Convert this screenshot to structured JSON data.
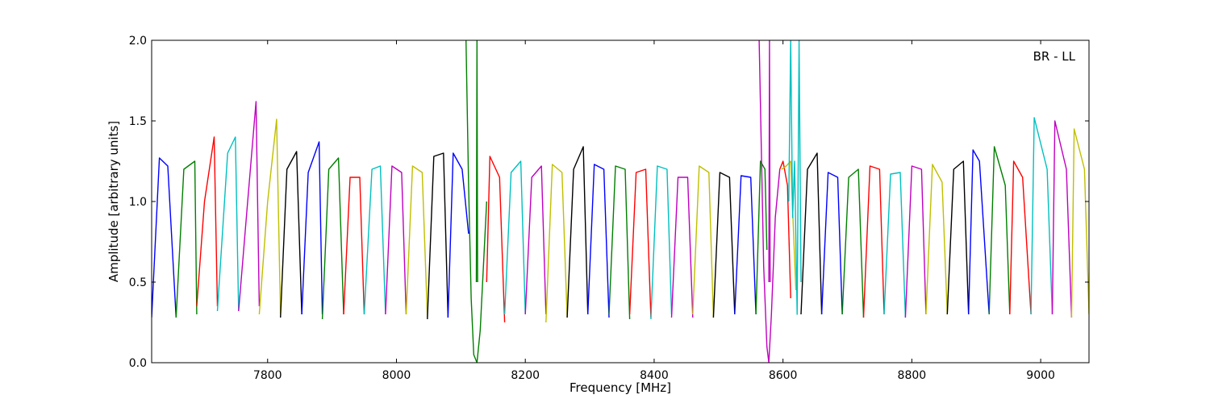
{
  "chart_data": {
    "type": "line",
    "annotation": "BR - LL",
    "xlabel": "Frequency [MHz]",
    "ylabel": "Amplitude [arbitrary units]",
    "xlim": [
      7620,
      9075
    ],
    "ylim": [
      0,
      2.0
    ],
    "xticks": [
      7800,
      8000,
      8200,
      8400,
      8600,
      8800,
      9000
    ],
    "yticks": [
      0.0,
      0.5,
      1.0,
      1.5,
      2.0
    ],
    "ytick_labels": [
      "0.0",
      "0.5",
      "1.0",
      "1.5",
      "2.0"
    ],
    "grid": false,
    "colors": {
      "blue": "#0000ff",
      "green": "#007f00",
      "red": "#ff0000",
      "cyan": "#00bfbf",
      "magenta": "#bf00bf",
      "olive": "#bfbf00",
      "black": "#000000"
    },
    "series": [
      {
        "color": "blue",
        "x": [
          7620,
          7632,
          7645,
          7658
        ],
        "y": [
          0.28,
          1.27,
          1.22,
          0.28
        ]
      },
      {
        "color": "green",
        "x": [
          7658,
          7670,
          7687,
          7690
        ],
        "y": [
          0.28,
          1.2,
          1.25,
          0.3
        ]
      },
      {
        "color": "red",
        "x": [
          7690,
          7702,
          7717,
          7722
        ],
        "y": [
          0.35,
          1.0,
          1.4,
          0.35
        ]
      },
      {
        "color": "cyan",
        "x": [
          7722,
          7738,
          7750,
          7755
        ],
        "y": [
          0.32,
          1.3,
          1.4,
          0.32
        ]
      },
      {
        "color": "magenta",
        "x": [
          7755,
          7768,
          7782,
          7787
        ],
        "y": [
          0.32,
          0.95,
          1.62,
          0.35
        ]
      },
      {
        "color": "olive",
        "x": [
          7787,
          7800,
          7814,
          7820
        ],
        "y": [
          0.3,
          1.0,
          1.51,
          0.3
        ]
      },
      {
        "color": "black",
        "x": [
          7820,
          7830,
          7845,
          7853
        ],
        "y": [
          0.28,
          1.2,
          1.31,
          0.3
        ]
      },
      {
        "color": "blue",
        "x": [
          7853,
          7863,
          7880,
          7885
        ],
        "y": [
          0.3,
          1.18,
          1.37,
          0.3
        ]
      },
      {
        "color": "green",
        "x": [
          7885,
          7895,
          7910,
          7918
        ],
        "y": [
          0.27,
          1.2,
          1.27,
          0.3
        ]
      },
      {
        "color": "red",
        "x": [
          7918,
          7928,
          7943,
          7950
        ],
        "y": [
          0.3,
          1.15,
          1.15,
          0.3
        ]
      },
      {
        "color": "cyan",
        "x": [
          7950,
          7962,
          7975,
          7983
        ],
        "y": [
          0.3,
          1.2,
          1.22,
          0.3
        ]
      },
      {
        "color": "magenta",
        "x": [
          7983,
          7993,
          8008,
          8015
        ],
        "y": [
          0.3,
          1.22,
          1.18,
          0.3
        ]
      },
      {
        "color": "olive",
        "x": [
          8015,
          8025,
          8040,
          8048
        ],
        "y": [
          0.3,
          1.22,
          1.18,
          0.28
        ]
      },
      {
        "color": "black",
        "x": [
          8048,
          8058,
          8073,
          8080
        ],
        "y": [
          0.27,
          1.28,
          1.3,
          0.28
        ]
      },
      {
        "color": "blue",
        "x": [
          8080,
          8088,
          8102,
          8112
        ],
        "y": [
          0.28,
          1.3,
          1.2,
          0.8
        ]
      },
      {
        "color": "green",
        "x": [
          8108,
          8112,
          8116,
          8120,
          8125,
          8130,
          8135,
          8140
        ],
        "y": [
          2.0,
          1.1,
          0.4,
          0.05,
          0.0,
          0.2,
          0.6,
          1.0
        ]
      },
      {
        "color": "green",
        "x": [
          8124,
          8125,
          8126
        ],
        "y": [
          0.5,
          2.0,
          0.5
        ]
      },
      {
        "color": "red",
        "x": [
          8140,
          8145,
          8160,
          8168
        ],
        "y": [
          0.5,
          1.28,
          1.15,
          0.25
        ]
      },
      {
        "color": "cyan",
        "x": [
          8168,
          8178,
          8193,
          8200
        ],
        "y": [
          0.3,
          1.18,
          1.25,
          0.3
        ]
      },
      {
        "color": "magenta",
        "x": [
          8200,
          8210,
          8225,
          8232
        ],
        "y": [
          0.3,
          1.15,
          1.22,
          0.3
        ]
      },
      {
        "color": "olive",
        "x": [
          8232,
          8242,
          8257,
          8265
        ],
        "y": [
          0.25,
          1.23,
          1.18,
          0.28
        ]
      },
      {
        "color": "black",
        "x": [
          8265,
          8275,
          8290,
          8297
        ],
        "y": [
          0.28,
          1.2,
          1.34,
          0.3
        ]
      },
      {
        "color": "blue",
        "x": [
          8297,
          8307,
          8322,
          8330
        ],
        "y": [
          0.3,
          1.23,
          1.2,
          0.28
        ]
      },
      {
        "color": "green",
        "x": [
          8330,
          8340,
          8355,
          8362
        ],
        "y": [
          0.3,
          1.22,
          1.2,
          0.27
        ]
      },
      {
        "color": "red",
        "x": [
          8362,
          8372,
          8387,
          8395
        ],
        "y": [
          0.3,
          1.18,
          1.2,
          0.28
        ]
      },
      {
        "color": "cyan",
        "x": [
          8395,
          8405,
          8420,
          8427
        ],
        "y": [
          0.27,
          1.22,
          1.2,
          0.3
        ]
      },
      {
        "color": "magenta",
        "x": [
          8427,
          8437,
          8452,
          8460
        ],
        "y": [
          0.28,
          1.15,
          1.15,
          0.28
        ]
      },
      {
        "color": "olive",
        "x": [
          8460,
          8470,
          8485,
          8492
        ],
        "y": [
          0.3,
          1.22,
          1.18,
          0.28
        ]
      },
      {
        "color": "black",
        "x": [
          8492,
          8502,
          8517,
          8525
        ],
        "y": [
          0.28,
          1.18,
          1.15,
          0.3
        ]
      },
      {
        "color": "blue",
        "x": [
          8525,
          8535,
          8550,
          8558
        ],
        "y": [
          0.3,
          1.16,
          1.15,
          0.3
        ]
      },
      {
        "color": "green",
        "x": [
          8558,
          8565,
          8572,
          8575
        ],
        "y": [
          0.3,
          1.25,
          1.2,
          0.7
        ]
      },
      {
        "color": "magenta",
        "x": [
          8563,
          8570,
          8575,
          8578,
          8582,
          8588,
          8595
        ],
        "y": [
          2.0,
          0.6,
          0.1,
          0.0,
          0.3,
          0.9,
          1.2
        ]
      },
      {
        "color": "magenta",
        "x": [
          8578,
          8579,
          8580
        ],
        "y": [
          0.5,
          2.0,
          0.5
        ]
      },
      {
        "color": "red",
        "x": [
          8595,
          8600,
          8607,
          8612
        ],
        "y": [
          1.2,
          1.25,
          1.1,
          0.4
        ]
      },
      {
        "color": "olive",
        "x": [
          8598,
          8605,
          8612,
          8620
        ],
        "y": [
          1.2,
          1.22,
          1.25,
          0.45
        ]
      },
      {
        "color": "cyan",
        "x": [
          8609,
          8612,
          8615,
          8618,
          8622,
          8625,
          8628
        ],
        "y": [
          1.0,
          2.0,
          0.9,
          1.25,
          0.3,
          2.0,
          0.5
        ]
      },
      {
        "color": "black",
        "x": [
          8628,
          8638,
          8653,
          8660
        ],
        "y": [
          0.3,
          1.2,
          1.3,
          0.3
        ]
      },
      {
        "color": "blue",
        "x": [
          8660,
          8670,
          8685,
          8692
        ],
        "y": [
          0.3,
          1.18,
          1.15,
          0.3
        ]
      },
      {
        "color": "green",
        "x": [
          8692,
          8702,
          8717,
          8725
        ],
        "y": [
          0.3,
          1.15,
          1.2,
          0.28
        ]
      },
      {
        "color": "red",
        "x": [
          8725,
          8735,
          8750,
          8757
        ],
        "y": [
          0.28,
          1.22,
          1.2,
          0.3
        ]
      },
      {
        "color": "cyan",
        "x": [
          8757,
          8767,
          8782,
          8790
        ],
        "y": [
          0.3,
          1.17,
          1.18,
          0.28
        ]
      },
      {
        "color": "magenta",
        "x": [
          8790,
          8800,
          8815,
          8822
        ],
        "y": [
          0.28,
          1.22,
          1.2,
          0.3
        ]
      },
      {
        "color": "olive",
        "x": [
          8822,
          8832,
          8847,
          8855
        ],
        "y": [
          0.3,
          1.23,
          1.12,
          0.3
        ]
      },
      {
        "color": "black",
        "x": [
          8855,
          8865,
          8880,
          8888
        ],
        "y": [
          0.3,
          1.2,
          1.25,
          0.3
        ]
      },
      {
        "color": "blue",
        "x": [
          8888,
          8895,
          8905,
          8920
        ],
        "y": [
          0.3,
          1.32,
          1.25,
          0.3
        ]
      },
      {
        "color": "green",
        "x": [
          8920,
          8928,
          8945,
          8952
        ],
        "y": [
          0.3,
          1.34,
          1.1,
          0.3
        ]
      },
      {
        "color": "red",
        "x": [
          8952,
          8958,
          8972,
          8985
        ],
        "y": [
          0.3,
          1.25,
          1.15,
          0.3
        ]
      },
      {
        "color": "cyan",
        "x": [
          8985,
          8990,
          9010,
          9018
        ],
        "y": [
          0.3,
          1.52,
          1.2,
          0.3
        ]
      },
      {
        "color": "magenta",
        "x": [
          9018,
          9022,
          9040,
          9048
        ],
        "y": [
          0.3,
          1.5,
          1.2,
          0.28
        ]
      },
      {
        "color": "olive",
        "x": [
          9048,
          9052,
          9068,
          9075
        ],
        "y": [
          0.28,
          1.45,
          1.2,
          0.3
        ]
      }
    ]
  }
}
